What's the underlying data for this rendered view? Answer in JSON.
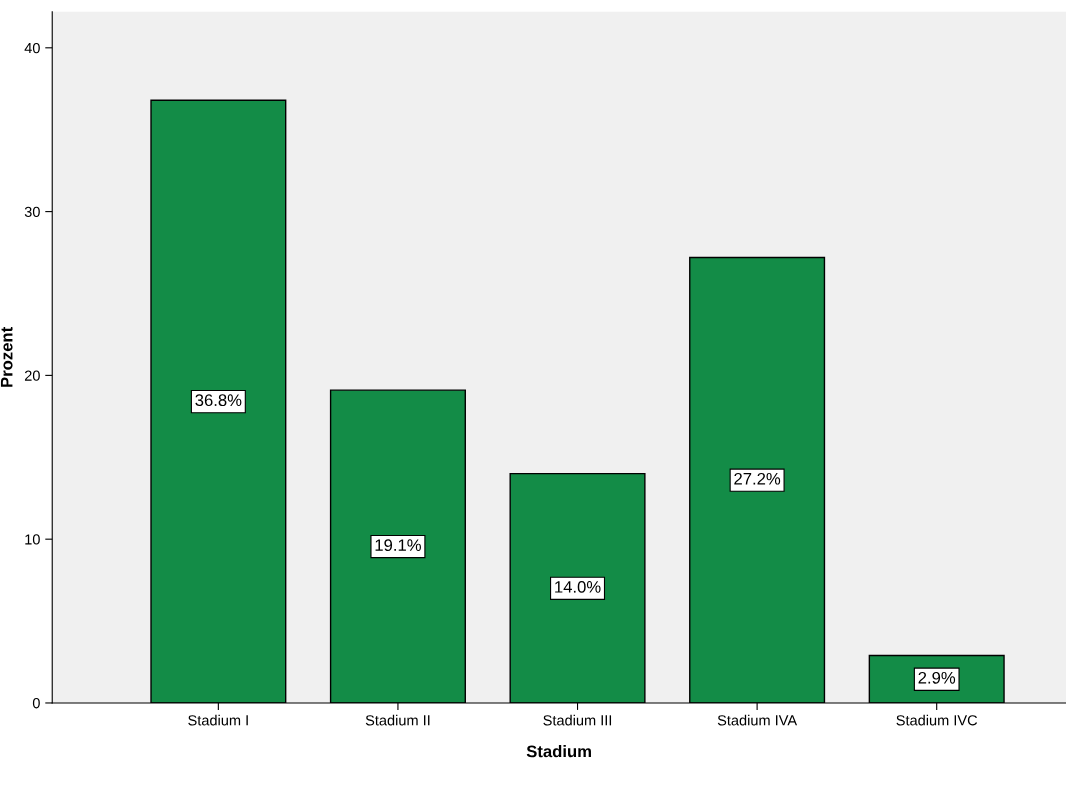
{
  "chart_data": {
    "type": "bar",
    "xlabel": "Stadium",
    "ylabel": "Prozent",
    "categories": [
      "Stadium I",
      "Stadium II",
      "Stadium III",
      "Stadium IVA",
      "Stadium IVC"
    ],
    "values": [
      36.8,
      19.1,
      14.0,
      27.2,
      2.9
    ],
    "value_labels": [
      "36.8%",
      "19.1%",
      "14.0%",
      "27.2%",
      "2.9%"
    ],
    "color": "#138c47",
    "ylim": [
      0,
      42.2
    ],
    "yticks": [
      0,
      10,
      20,
      30,
      40
    ],
    "grid": false,
    "legend": false
  }
}
